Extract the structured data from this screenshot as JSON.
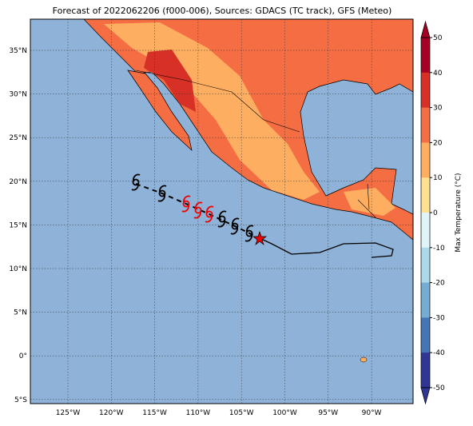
{
  "title": "Forecast of 2022062206 (f000-006), Sources: GDACS (TC track), GFS (Meteo)",
  "lat_labels": [
    "35°N",
    "30°N",
    "25°N",
    "20°N",
    "15°N",
    "10°N",
    "5°N",
    "0°",
    "5°S"
  ],
  "lon_labels": [
    "125°W",
    "120°W",
    "115°W",
    "110°W",
    "105°W",
    "100°W",
    "95°W",
    "90°W"
  ],
  "colorbar": {
    "label": "Max Temperature (°C)",
    "ticks": [
      50,
      40,
      30,
      20,
      10,
      0,
      -10,
      -20,
      -30,
      -40,
      -50
    ],
    "colors": [
      "#a50026",
      "#d73027",
      "#f46d43",
      "#fdae61",
      "#fee090",
      "#e0f3f8",
      "#abd9e9",
      "#74add1",
      "#4575b4",
      "#313695"
    ]
  }
}
